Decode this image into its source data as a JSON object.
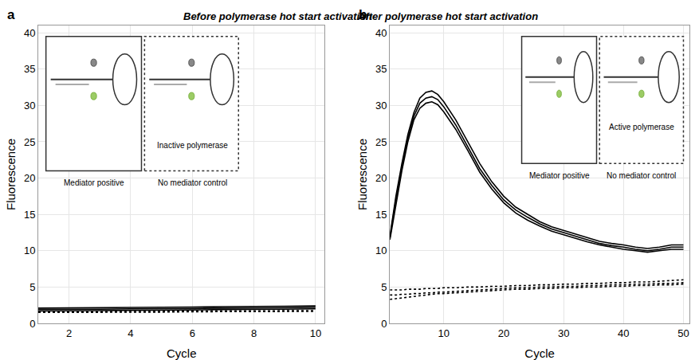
{
  "chart_data": [
    {
      "type": "line",
      "panel": "a",
      "title": "Before polymerase hot start activation",
      "x_label": "Cycle",
      "y_label": "Fluorescence",
      "x": [
        1,
        2,
        3,
        4,
        5,
        6,
        7,
        8,
        9,
        10
      ],
      "series": [
        {
          "color": "#000000",
          "line_style": "solid",
          "values": [
            2.1,
            2.1,
            2.15,
            2.2,
            2.2,
            2.25,
            2.3,
            2.3,
            2.35,
            2.4
          ]
        },
        {
          "color": "#000000",
          "line_style": "solid",
          "values": [
            1.9,
            1.9,
            1.95,
            2.0,
            2.0,
            2.05,
            2.1,
            2.1,
            2.15,
            2.2
          ]
        },
        {
          "color": "#000000",
          "line_style": "solid",
          "values": [
            1.7,
            1.7,
            1.75,
            1.8,
            1.8,
            1.85,
            1.9,
            1.9,
            1.95,
            2.0
          ]
        },
        {
          "color": "#000000",
          "line_style": "dotted",
          "values": [
            1.6,
            1.6,
            1.6,
            1.65,
            1.65,
            1.7,
            1.7,
            1.7,
            1.75,
            1.75
          ]
        },
        {
          "color": "#000000",
          "line_style": "dotted",
          "values": [
            1.5,
            1.5,
            1.5,
            1.55,
            1.55,
            1.6,
            1.6,
            1.6,
            1.65,
            1.65
          ]
        }
      ],
      "xlim": [
        1,
        10.3
      ],
      "ylim": [
        0,
        41
      ],
      "xticks": [
        2,
        4,
        6,
        8,
        10
      ],
      "yticks": [
        0,
        5,
        10,
        15,
        20,
        25,
        30,
        35,
        40
      ],
      "grid": true,
      "legend": false,
      "annotations": [
        {
          "text": "Mediator positive"
        },
        {
          "text": "No mediator control"
        },
        {
          "text": "Inactive polymerase"
        }
      ]
    },
    {
      "type": "line",
      "panel": "b",
      "title": "After polymerase hot start activation",
      "x_label": "Cycle",
      "y_label": "Fluorescence",
      "x": [
        1,
        2,
        3,
        4,
        5,
        6,
        7,
        8,
        9,
        10,
        12,
        14,
        16,
        18,
        20,
        22,
        24,
        26,
        28,
        30,
        32,
        34,
        36,
        38,
        40,
        42,
        44,
        46,
        48,
        50
      ],
      "series": [
        {
          "color": "#000000",
          "line_style": "solid",
          "values": [
            12,
            17.5,
            22,
            26,
            29,
            31,
            31.8,
            32,
            31.5,
            30.5,
            28,
            25,
            22,
            19.5,
            17.5,
            16,
            15,
            14,
            13.3,
            12.8,
            12.3,
            11.8,
            11.3,
            11,
            10.8,
            10.5,
            10.3,
            10.5,
            10.8,
            10.8
          ]
        },
        {
          "color": "#000000",
          "line_style": "solid",
          "values": [
            11.8,
            17,
            21.5,
            25.5,
            28.5,
            30.3,
            31,
            31.2,
            30.8,
            29.8,
            27.3,
            24.3,
            21.3,
            19,
            17,
            15.6,
            14.6,
            13.7,
            13,
            12.5,
            12,
            11.5,
            11,
            10.7,
            10.5,
            10.2,
            10,
            10.2,
            10.5,
            10.5
          ]
        },
        {
          "color": "#000000",
          "line_style": "solid",
          "values": [
            11.5,
            16.5,
            21,
            25,
            28,
            29.6,
            30.3,
            30.5,
            30.1,
            29.1,
            26.7,
            23.8,
            20.8,
            18.5,
            16.6,
            15.2,
            14.2,
            13.4,
            12.7,
            12.2,
            11.7,
            11.2,
            10.8,
            10.5,
            10.2,
            10,
            9.8,
            10,
            10.2,
            10.2
          ]
        },
        {
          "color": "#000000",
          "line_style": "dotted",
          "values": [
            4.6,
            4.6,
            4.6,
            4.7,
            4.7,
            4.7,
            4.8,
            4.8,
            4.8,
            4.9,
            4.9,
            5.0,
            5.0,
            5.1,
            5.1,
            5.2,
            5.2,
            5.3,
            5.3,
            5.4,
            5.4,
            5.5,
            5.5,
            5.6,
            5.6,
            5.7,
            5.7,
            5.8,
            5.9,
            6.0
          ]
        },
        {
          "color": "#000000",
          "line_style": "dotted",
          "values": [
            3.9,
            3.9,
            4.0,
            4.0,
            4.1,
            4.1,
            4.2,
            4.2,
            4.3,
            4.3,
            4.4,
            4.5,
            4.6,
            4.7,
            4.8,
            4.9,
            4.9,
            5.0,
            5.0,
            5.1,
            5.1,
            5.2,
            5.2,
            5.3,
            5.3,
            5.4,
            5.4,
            5.5,
            5.5,
            5.6
          ]
        },
        {
          "color": "#000000",
          "line_style": "dotted",
          "values": [
            3.3,
            3.4,
            3.5,
            3.6,
            3.7,
            3.8,
            3.9,
            4.0,
            4.1,
            4.1,
            4.2,
            4.3,
            4.4,
            4.5,
            4.6,
            4.7,
            4.7,
            4.8,
            4.8,
            4.9,
            4.9,
            5.0,
            5.0,
            5.1,
            5.1,
            5.2,
            5.2,
            5.3,
            5.3,
            5.4
          ]
        }
      ],
      "xlim": [
        1,
        51
      ],
      "ylim": [
        0,
        41
      ],
      "xticks": [
        10,
        20,
        30,
        40,
        50
      ],
      "yticks": [
        0,
        5,
        10,
        15,
        20,
        25,
        30,
        35,
        40
      ],
      "grid": true,
      "legend": false,
      "annotations": [
        {
          "text": "Mediator positive"
        },
        {
          "text": "No mediator control"
        },
        {
          "text": "Active polymerase"
        }
      ]
    }
  ]
}
